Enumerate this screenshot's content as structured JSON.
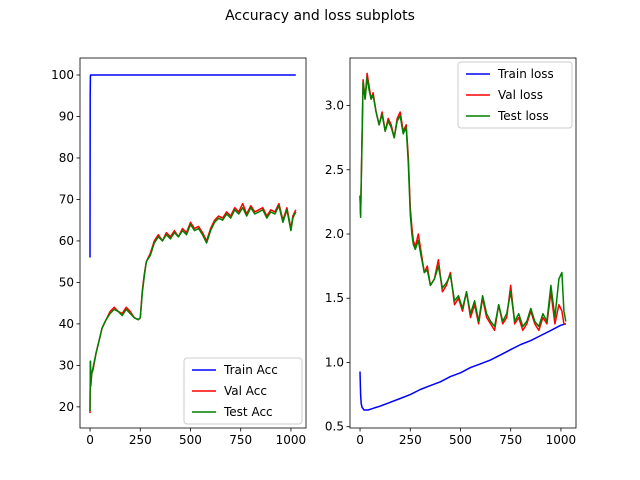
{
  "figure": {
    "title": "Accuracy and loss subplots"
  },
  "chart_data": [
    {
      "type": "line",
      "title": "",
      "xlabel": "",
      "ylabel": "",
      "xlim": [
        -50,
        1075
      ],
      "ylim": [
        14.9,
        104.1
      ],
      "xticks": [
        0,
        250,
        500,
        750,
        1000
      ],
      "yticks": [
        20,
        30,
        40,
        50,
        60,
        70,
        80,
        90,
        100
      ],
      "grid": false,
      "legend_position": "lower-right",
      "series": [
        {
          "name": "Train Acc",
          "color": "#0000ff",
          "x": [
            0,
            1,
            2,
            3,
            5,
            10,
            50,
            100,
            250,
            500,
            750,
            1000,
            1024
          ],
          "y": [
            56,
            95,
            99.5,
            100,
            100,
            100,
            100,
            100,
            100,
            100,
            100,
            100,
            100
          ]
        },
        {
          "name": "Val Acc",
          "color": "#ff0000",
          "x": [
            0,
            2,
            4,
            8,
            15,
            30,
            45,
            60,
            80,
            100,
            120,
            140,
            160,
            180,
            200,
            220,
            240,
            250,
            260,
            270,
            280,
            300,
            320,
            340,
            360,
            380,
            400,
            420,
            440,
            460,
            480,
            500,
            520,
            540,
            560,
            580,
            600,
            620,
            640,
            660,
            680,
            700,
            720,
            740,
            760,
            780,
            800,
            820,
            840,
            860,
            880,
            900,
            920,
            940,
            960,
            980,
            1000,
            1010,
            1024
          ],
          "y": [
            18.5,
            31,
            25,
            28,
            29,
            33,
            36,
            39,
            41,
            43,
            44,
            43,
            42.5,
            44,
            43,
            41.5,
            41,
            41.5,
            48,
            52,
            55,
            57,
            60,
            61.5,
            60,
            62,
            61,
            62.5,
            61,
            63,
            62,
            64.5,
            63,
            63.5,
            62,
            60,
            63,
            65,
            66,
            65.5,
            67,
            66,
            68,
            67,
            69,
            66.5,
            68.5,
            67,
            67.5,
            68,
            66,
            67.5,
            67,
            69,
            65,
            68,
            63,
            66,
            67.5
          ]
        },
        {
          "name": "Test Acc",
          "color": "#008000",
          "x": [
            0,
            2,
            4,
            8,
            15,
            30,
            45,
            60,
            80,
            100,
            120,
            140,
            160,
            180,
            200,
            220,
            240,
            250,
            260,
            270,
            280,
            300,
            320,
            340,
            360,
            380,
            400,
            420,
            440,
            460,
            480,
            500,
            520,
            540,
            560,
            580,
            600,
            620,
            640,
            660,
            680,
            700,
            720,
            740,
            760,
            780,
            800,
            820,
            840,
            860,
            880,
            900,
            920,
            940,
            960,
            980,
            1000,
            1010,
            1024
          ],
          "y": [
            19,
            31,
            25.5,
            28,
            29.5,
            33,
            36,
            39,
            41,
            42.5,
            43.5,
            43,
            42,
            43.5,
            42.5,
            41.5,
            41,
            41.5,
            47.5,
            51.5,
            55,
            56.5,
            59.5,
            61,
            60,
            61.5,
            60.5,
            62,
            61,
            62.5,
            61.5,
            64,
            62.5,
            63,
            61.5,
            59.5,
            62.5,
            64.5,
            65.5,
            65,
            66.5,
            65.5,
            67.5,
            66.5,
            68,
            66,
            68,
            66.5,
            67,
            67.5,
            65.5,
            67,
            66.5,
            68.5,
            64.5,
            67.5,
            62.5,
            65.5,
            67
          ]
        }
      ]
    },
    {
      "type": "line",
      "title": "",
      "xlabel": "",
      "ylabel": "",
      "xlim": [
        -50,
        1075
      ],
      "ylim": [
        0.49,
        3.37
      ],
      "xticks": [
        0,
        250,
        500,
        750,
        1000
      ],
      "yticks": [
        0.5,
        1.0,
        1.5,
        2.0,
        2.5,
        3.0
      ],
      "ytick_labels": [
        "0.5",
        "1.0",
        "1.5",
        "2.0",
        "2.5",
        "3.0"
      ],
      "grid": false,
      "legend_position": "top-right",
      "series": [
        {
          "name": "Train loss",
          "color": "#0000ff",
          "x": [
            0,
            3,
            6,
            10,
            15,
            20,
            30,
            40,
            60,
            80,
            100,
            150,
            200,
            250,
            300,
            350,
            400,
            450,
            500,
            550,
            600,
            650,
            700,
            750,
            800,
            850,
            900,
            950,
            1000,
            1024
          ],
          "y": [
            0.93,
            0.75,
            0.68,
            0.65,
            0.64,
            0.63,
            0.63,
            0.63,
            0.64,
            0.65,
            0.66,
            0.69,
            0.72,
            0.75,
            0.79,
            0.82,
            0.85,
            0.89,
            0.92,
            0.96,
            0.99,
            1.02,
            1.06,
            1.1,
            1.14,
            1.17,
            1.21,
            1.25,
            1.29,
            1.3
          ]
        },
        {
          "name": "Val loss",
          "color": "#ff0000",
          "x": [
            0,
            3,
            8,
            15,
            25,
            35,
            45,
            55,
            65,
            80,
            95,
            110,
            125,
            140,
            155,
            170,
            185,
            200,
            215,
            230,
            240,
            250,
            258,
            265,
            275,
            290,
            305,
            320,
            335,
            350,
            370,
            390,
            410,
            430,
            450,
            470,
            490,
            510,
            530,
            550,
            570,
            590,
            610,
            630,
            650,
            670,
            690,
            710,
            730,
            750,
            770,
            790,
            810,
            830,
            850,
            870,
            890,
            910,
            930,
            950,
            970,
            990,
            1005,
            1015,
            1024
          ],
          "y": [
            2.3,
            2.15,
            2.6,
            3.2,
            3.05,
            3.25,
            3.15,
            3.05,
            3.1,
            2.95,
            2.85,
            2.95,
            2.8,
            2.9,
            2.85,
            2.75,
            2.9,
            2.95,
            2.8,
            2.85,
            2.6,
            2.2,
            2.05,
            1.95,
            1.9,
            2.0,
            1.85,
            1.7,
            1.75,
            1.6,
            1.65,
            1.8,
            1.55,
            1.6,
            1.7,
            1.45,
            1.5,
            1.4,
            1.55,
            1.35,
            1.45,
            1.3,
            1.5,
            1.35,
            1.3,
            1.25,
            1.45,
            1.3,
            1.35,
            1.6,
            1.3,
            1.35,
            1.25,
            1.3,
            1.4,
            1.3,
            1.25,
            1.35,
            1.3,
            1.55,
            1.3,
            1.45,
            1.4,
            1.3,
            1.3
          ]
        },
        {
          "name": "Test loss",
          "color": "#008000",
          "x": [
            0,
            3,
            8,
            15,
            25,
            35,
            45,
            55,
            65,
            80,
            95,
            110,
            125,
            140,
            155,
            170,
            185,
            200,
            215,
            230,
            240,
            250,
            258,
            265,
            275,
            290,
            305,
            320,
            335,
            350,
            370,
            390,
            410,
            430,
            450,
            470,
            490,
            510,
            530,
            550,
            570,
            590,
            610,
            630,
            650,
            670,
            690,
            710,
            730,
            750,
            770,
            790,
            810,
            830,
            850,
            870,
            890,
            910,
            930,
            950,
            970,
            990,
            1005,
            1015,
            1024
          ],
          "y": [
            2.3,
            2.13,
            2.6,
            3.18,
            3.05,
            3.22,
            3.12,
            3.05,
            3.08,
            2.95,
            2.85,
            2.93,
            2.8,
            2.88,
            2.83,
            2.75,
            2.88,
            2.92,
            2.78,
            2.83,
            2.55,
            2.15,
            2.0,
            1.92,
            1.88,
            1.95,
            1.82,
            1.7,
            1.72,
            1.6,
            1.65,
            1.75,
            1.58,
            1.62,
            1.68,
            1.48,
            1.52,
            1.42,
            1.55,
            1.38,
            1.48,
            1.32,
            1.52,
            1.38,
            1.32,
            1.28,
            1.45,
            1.32,
            1.38,
            1.55,
            1.32,
            1.38,
            1.28,
            1.32,
            1.42,
            1.32,
            1.28,
            1.38,
            1.32,
            1.6,
            1.35,
            1.65,
            1.7,
            1.4,
            1.32
          ]
        }
      ]
    }
  ]
}
